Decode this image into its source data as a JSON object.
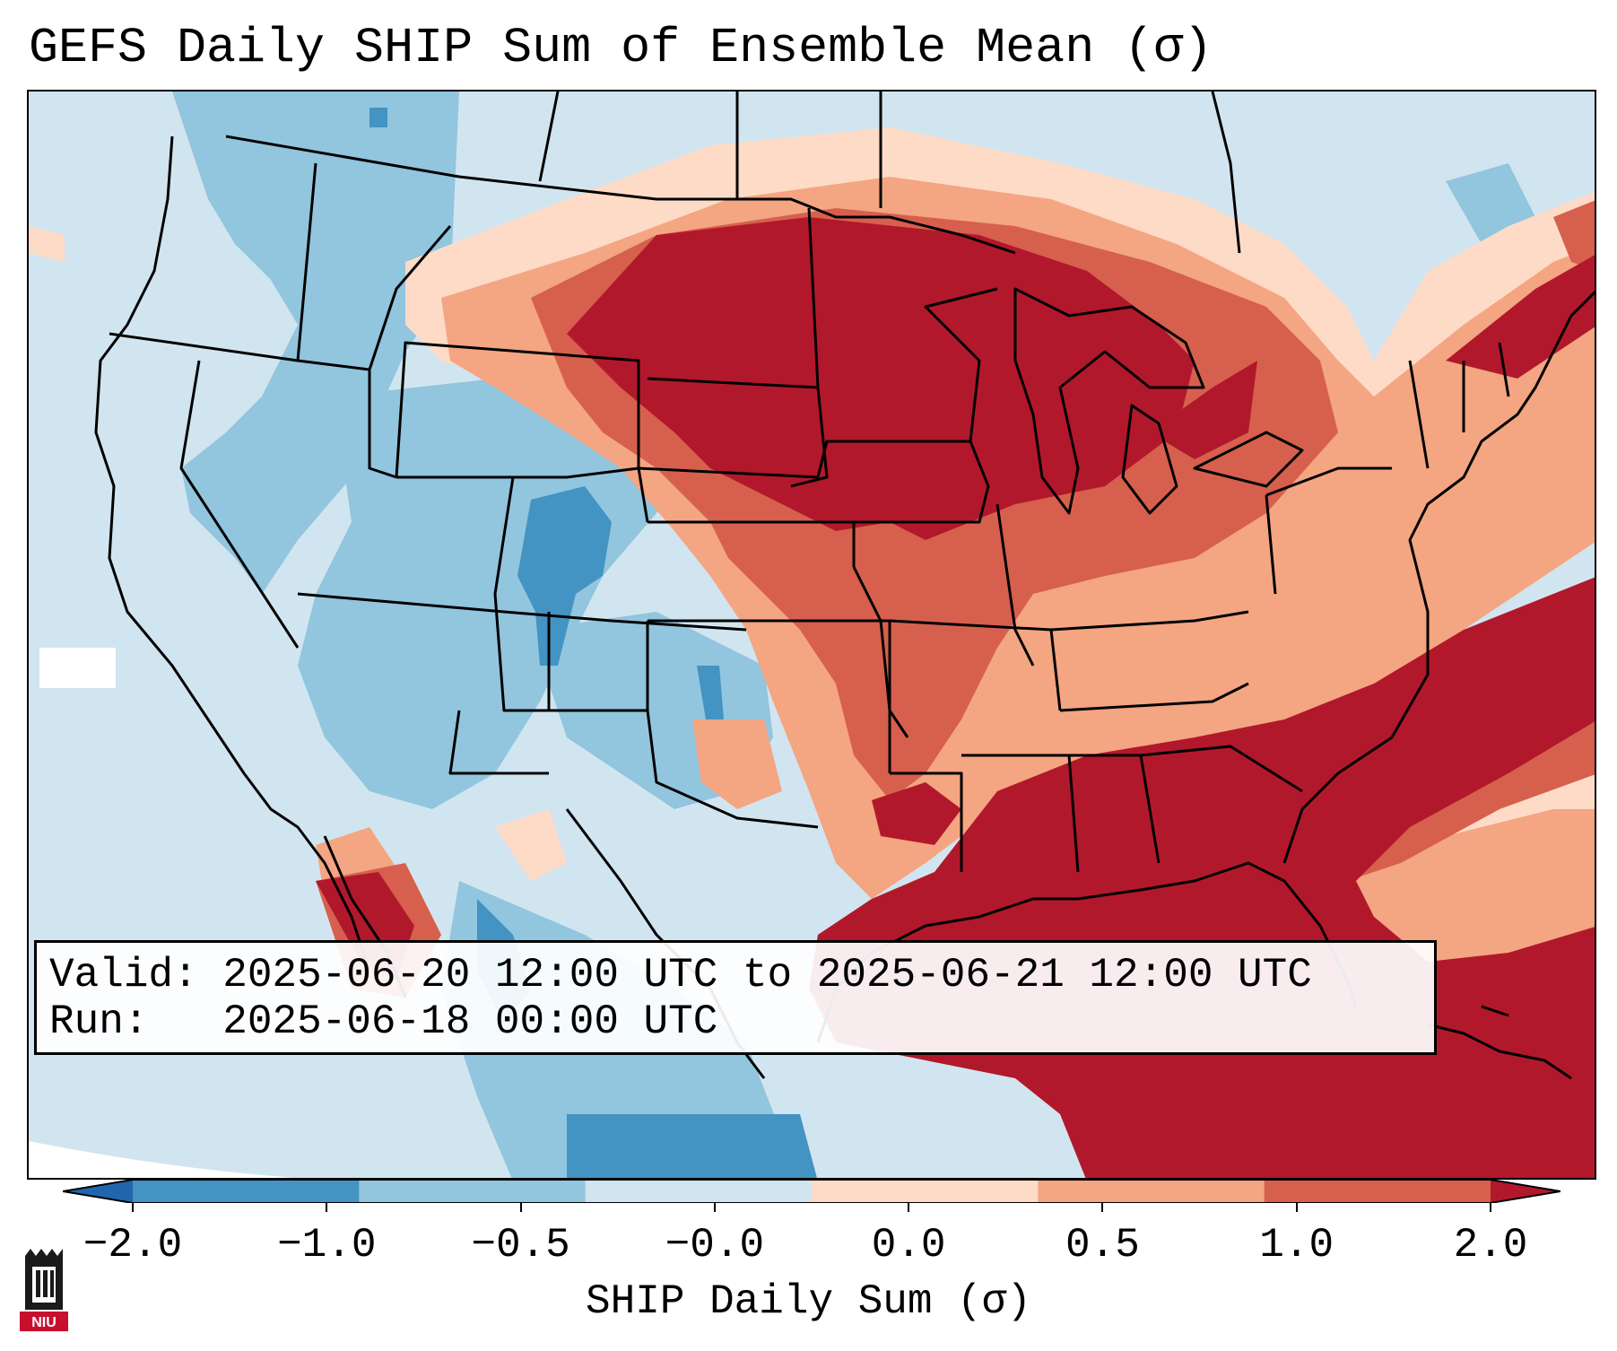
{
  "title": "GEFS Daily SHIP Sum of Ensemble Mean (σ)",
  "info": {
    "valid_label": "Valid:",
    "valid_value": "2025-06-20 12:00 UTC to 2025-06-21 12:00 UTC",
    "run_label": "Run:",
    "run_value": "2025-06-18 00:00 UTC"
  },
  "colorbar": {
    "label": "SHIP Daily Sum (σ)",
    "ticks": [
      "−2.0",
      "−1.0",
      "−0.5",
      "−0.0",
      "0.0",
      "0.5",
      "1.0",
      "2.0"
    ],
    "colors": [
      "#2166ac",
      "#4393c3",
      "#92c5de",
      "#d1e5f0",
      "#fddbc7",
      "#f4a582",
      "#d6604d",
      "#b2182b"
    ],
    "extend_low_color": "#2166ac",
    "extend_high_color": "#b2182b"
  },
  "logo": {
    "text": "NIU",
    "color": "#c8102e"
  }
}
